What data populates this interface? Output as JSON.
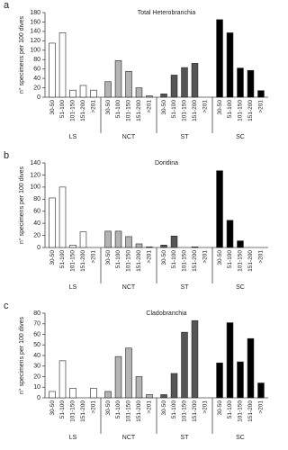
{
  "chart_data": [
    {
      "type": "bar",
      "panel": "a",
      "title": "Total Heterobranchia",
      "ylabel": "n° specimens per 100 dives",
      "categories": [
        "30-50",
        "51-100",
        "101-150",
        "151-200",
        ">201"
      ],
      "series": [
        {
          "name": "LS",
          "color": "#ffffff",
          "values": [
            115,
            137,
            15,
            25,
            15
          ]
        },
        {
          "name": "NCT",
          "color": "#b3b3b3",
          "values": [
            33,
            78,
            55,
            20,
            3
          ]
        },
        {
          "name": "ST",
          "color": "#555555",
          "values": [
            7,
            47,
            63,
            72,
            0
          ]
        },
        {
          "name": "SC",
          "color": "#000000",
          "values": [
            165,
            137,
            62,
            57,
            14
          ]
        }
      ],
      "ylim": [
        0,
        180
      ],
      "yticks": [
        0,
        20,
        40,
        60,
        80,
        100,
        120,
        140,
        160,
        180
      ]
    },
    {
      "type": "bar",
      "panel": "b",
      "title": "Doridina",
      "ylabel": "n° specimens per 100 dives",
      "categories": [
        "30-50",
        "51-100",
        "101-150",
        "151-200",
        ">201"
      ],
      "series": [
        {
          "name": "LS",
          "color": "#ffffff",
          "values": [
            82,
            100,
            4,
            26,
            0
          ]
        },
        {
          "name": "NCT",
          "color": "#b3b3b3",
          "values": [
            27,
            27,
            18,
            6,
            1
          ]
        },
        {
          "name": "ST",
          "color": "#555555",
          "values": [
            4,
            19,
            0,
            1,
            0
          ]
        },
        {
          "name": "SC",
          "color": "#000000",
          "values": [
            127,
            45,
            11,
            0,
            0
          ]
        }
      ],
      "ylim": [
        0,
        140
      ],
      "yticks": [
        0,
        20,
        40,
        60,
        80,
        100,
        120,
        140
      ]
    },
    {
      "type": "bar",
      "panel": "c",
      "title": "Cladobranchia",
      "ylabel": "n° specimens per 100 dives",
      "categories": [
        "30-50",
        "51-100",
        "101-150",
        "151-200",
        ">201"
      ],
      "series": [
        {
          "name": "LS",
          "color": "#ffffff",
          "values": [
            6,
            35,
            9,
            0,
            9
          ]
        },
        {
          "name": "NCT",
          "color": "#b3b3b3",
          "values": [
            6,
            39,
            47,
            20,
            3
          ]
        },
        {
          "name": "ST",
          "color": "#555555",
          "values": [
            3,
            23,
            62,
            73,
            0
          ]
        },
        {
          "name": "SC",
          "color": "#000000",
          "values": [
            33,
            71,
            34,
            56,
            14
          ]
        }
      ],
      "ylim": [
        0,
        80
      ],
      "yticks": [
        0,
        10,
        20,
        30,
        40,
        50,
        60,
        70,
        80
      ]
    }
  ]
}
